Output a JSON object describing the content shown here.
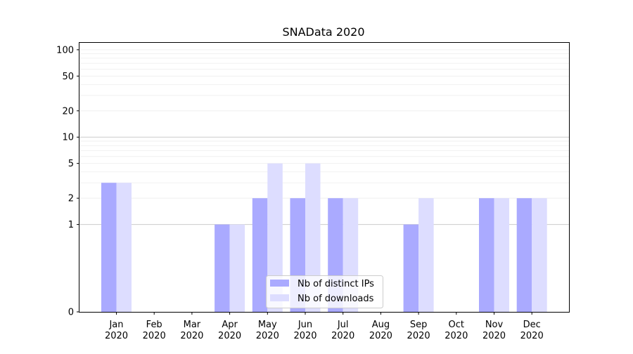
{
  "chart_data": {
    "type": "bar",
    "title": "SNAData 2020",
    "categories": [
      "Jan\n2020",
      "Feb\n2020",
      "Mar\n2020",
      "Apr\n2020",
      "May\n2020",
      "Jun\n2020",
      "Jul\n2020",
      "Aug\n2020",
      "Sep\n2020",
      "Oct\n2020",
      "Nov\n2020",
      "Dec\n2020"
    ],
    "series": [
      {
        "name": "Nb of distinct IPs",
        "color": "#aaaaff",
        "values": [
          3,
          0,
          0,
          1,
          2,
          2,
          2,
          0,
          1,
          0,
          2,
          2
        ]
      },
      {
        "name": "Nb of downloads",
        "color": "#ddddff",
        "values": [
          3,
          0,
          0,
          1,
          5,
          5,
          2,
          0,
          2,
          0,
          2,
          2
        ]
      }
    ],
    "y_scale": "symlog",
    "ylim": [
      0,
      120
    ],
    "yticks": [
      0,
      1,
      2,
      5,
      10,
      20,
      50,
      100
    ],
    "ytick_labels": [
      "0",
      "1",
      "2",
      "5",
      "10",
      "20",
      "50",
      "100"
    ],
    "major_gridlines": [
      1,
      10
    ],
    "minor_gridlines": [
      2,
      3,
      4,
      5,
      6,
      7,
      8,
      9,
      20,
      30,
      40,
      50,
      60,
      70,
      80,
      90,
      100
    ],
    "legend_position": "bottom-center",
    "grid": true
  }
}
